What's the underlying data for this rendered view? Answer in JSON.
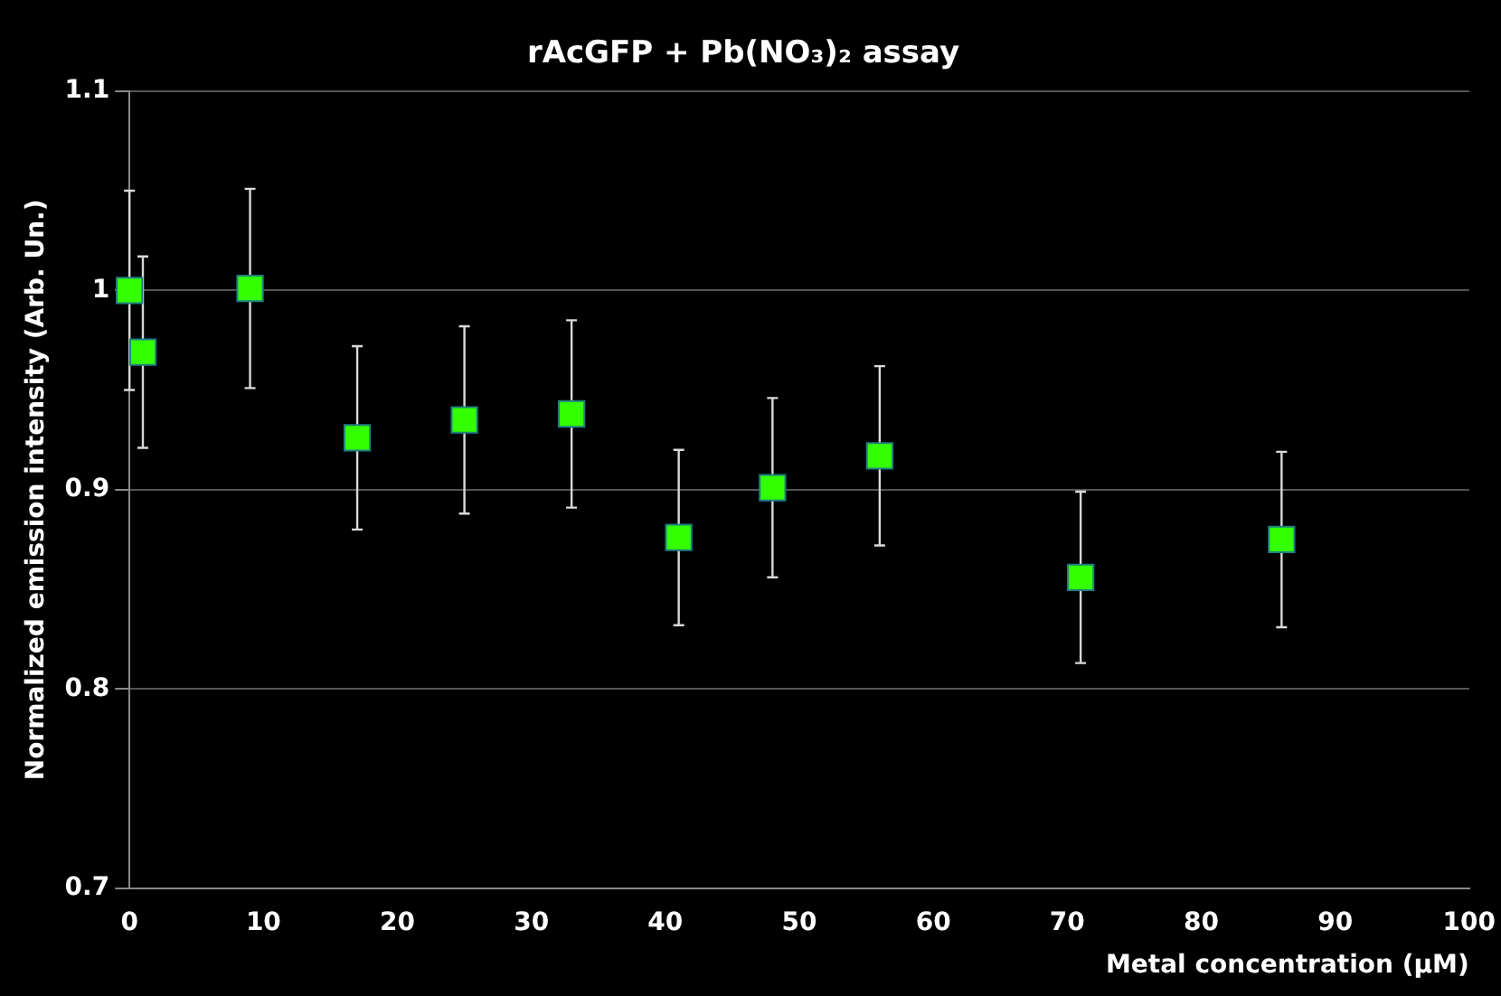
{
  "chart_data": {
    "type": "scatter",
    "title": "rAcGFP + Pb(NO₃)₂ assay",
    "xlabel": "Metal concentration (µM)",
    "ylabel": "Normalized emission intensity (Arb. Un.)",
    "x": [
      0,
      1,
      9,
      17,
      25,
      33,
      41,
      48,
      56,
      71,
      86
    ],
    "series": [
      {
        "color": "#33ff00",
        "values": [
          1.0,
          0.969,
          1.001,
          0.926,
          0.935,
          0.938,
          0.876,
          0.901,
          0.917,
          0.856,
          0.875
        ],
        "errors": [
          0.05,
          0.048,
          0.05,
          0.046,
          0.047,
          0.047,
          0.044,
          0.045,
          0.045,
          0.043,
          0.044
        ]
      }
    ],
    "xlim": [
      0,
      100
    ],
    "xticks": [
      0,
      10,
      20,
      30,
      40,
      50,
      60,
      70,
      80,
      90,
      100
    ],
    "ylim": [
      0.7,
      1.1
    ],
    "yticks": [
      0.7,
      0.8,
      0.9,
      1,
      1.1
    ],
    "grid": "y",
    "legend": false,
    "marker": "square"
  }
}
